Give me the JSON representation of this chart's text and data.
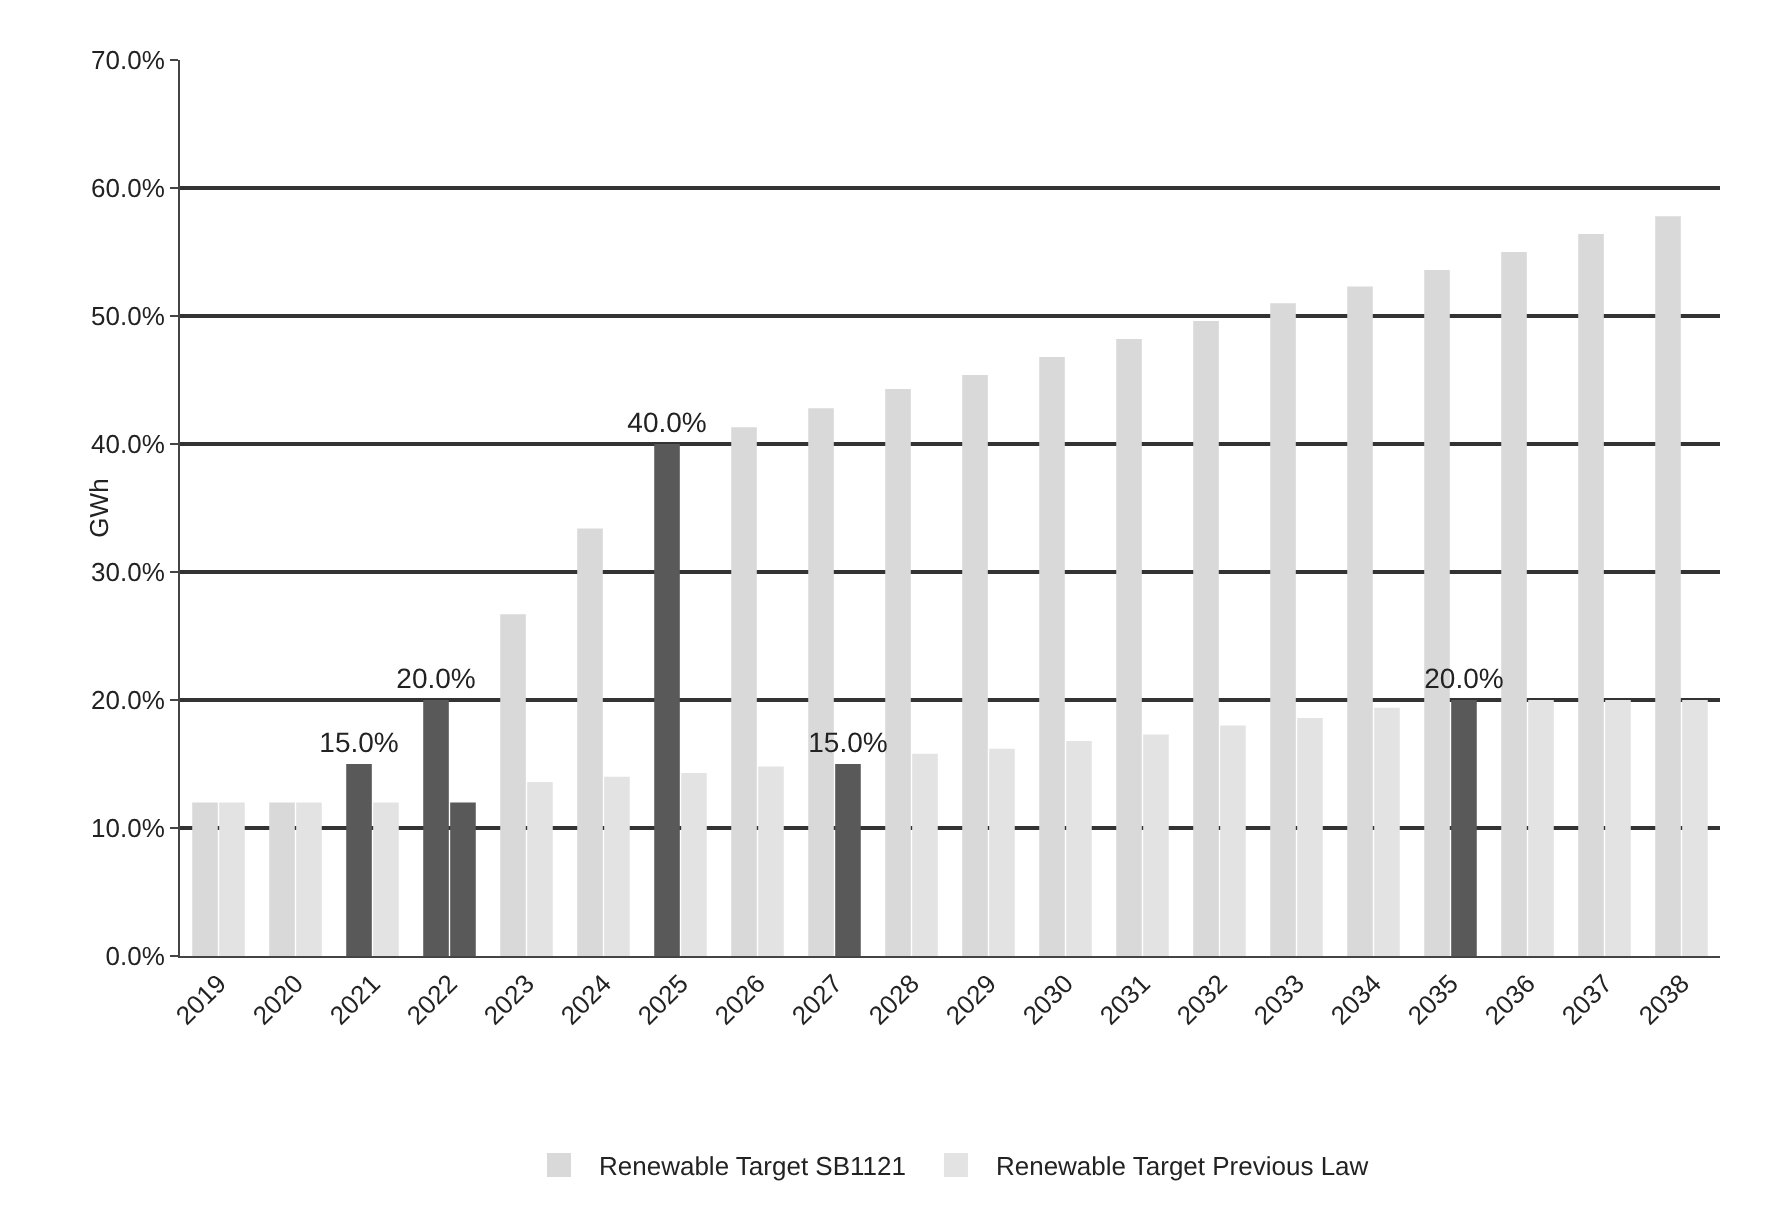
{
  "chart_data": {
    "type": "bar",
    "ylabel": "GWh",
    "categories": [
      "2019",
      "2020",
      "2021",
      "2022",
      "2023",
      "2024",
      "2025",
      "2026",
      "2027",
      "2028",
      "2029",
      "2030",
      "2031",
      "2032",
      "2033",
      "2034",
      "2035",
      "2036",
      "2037",
      "2038"
    ],
    "series": [
      {
        "name": "Renewable Target SB1121",
        "color": "#d9d9d9",
        "colors": [
          null,
          null,
          "#595959",
          "#595959",
          null,
          null,
          "#595959",
          null,
          null,
          null,
          null,
          null,
          null,
          null,
          null,
          null,
          null,
          null,
          null,
          null
        ],
        "values": [
          12,
          12,
          15,
          20,
          26.7,
          33.4,
          40,
          41.3,
          42.8,
          44.3,
          45.4,
          46.8,
          48.2,
          49.6,
          51.0,
          52.3,
          53.6,
          55.0,
          56.4,
          57.8
        ],
        "value_labels": [
          null,
          null,
          "15.0%",
          "20.0%",
          null,
          null,
          "40.0%",
          null,
          null,
          null,
          null,
          null,
          null,
          null,
          null,
          null,
          null,
          null,
          null,
          null
        ]
      },
      {
        "name": "Renewable Target Previous Law",
        "color": "#e3e3e3",
        "colors": [
          null,
          null,
          null,
          "#595959",
          null,
          null,
          null,
          null,
          "#595959",
          null,
          null,
          null,
          null,
          null,
          null,
          null,
          "#595959",
          null,
          null,
          null
        ],
        "values": [
          12,
          12,
          12,
          12,
          13.6,
          14.0,
          14.3,
          14.8,
          15,
          15.8,
          16.2,
          16.8,
          17.3,
          18.0,
          18.6,
          19.4,
          20,
          20,
          20,
          20
        ],
        "value_labels": [
          null,
          null,
          null,
          null,
          null,
          null,
          null,
          null,
          "15.0%",
          null,
          null,
          null,
          null,
          null,
          null,
          null,
          "20.0%",
          null,
          null,
          null
        ]
      }
    ],
    "ylim": [
      0,
      70
    ],
    "yticks": [
      {
        "value": 0,
        "label": "0.0%"
      },
      {
        "value": 10,
        "label": "10.0%"
      },
      {
        "value": 20,
        "label": "20.0%"
      },
      {
        "value": 30,
        "label": "30.0%"
      },
      {
        "value": 40,
        "label": "40.0%"
      },
      {
        "value": 50,
        "label": "50.0%"
      },
      {
        "value": 60,
        "label": "60.0%"
      },
      {
        "value": 70,
        "label": "70.0%"
      }
    ],
    "grid": "y",
    "legend": "bottom"
  }
}
